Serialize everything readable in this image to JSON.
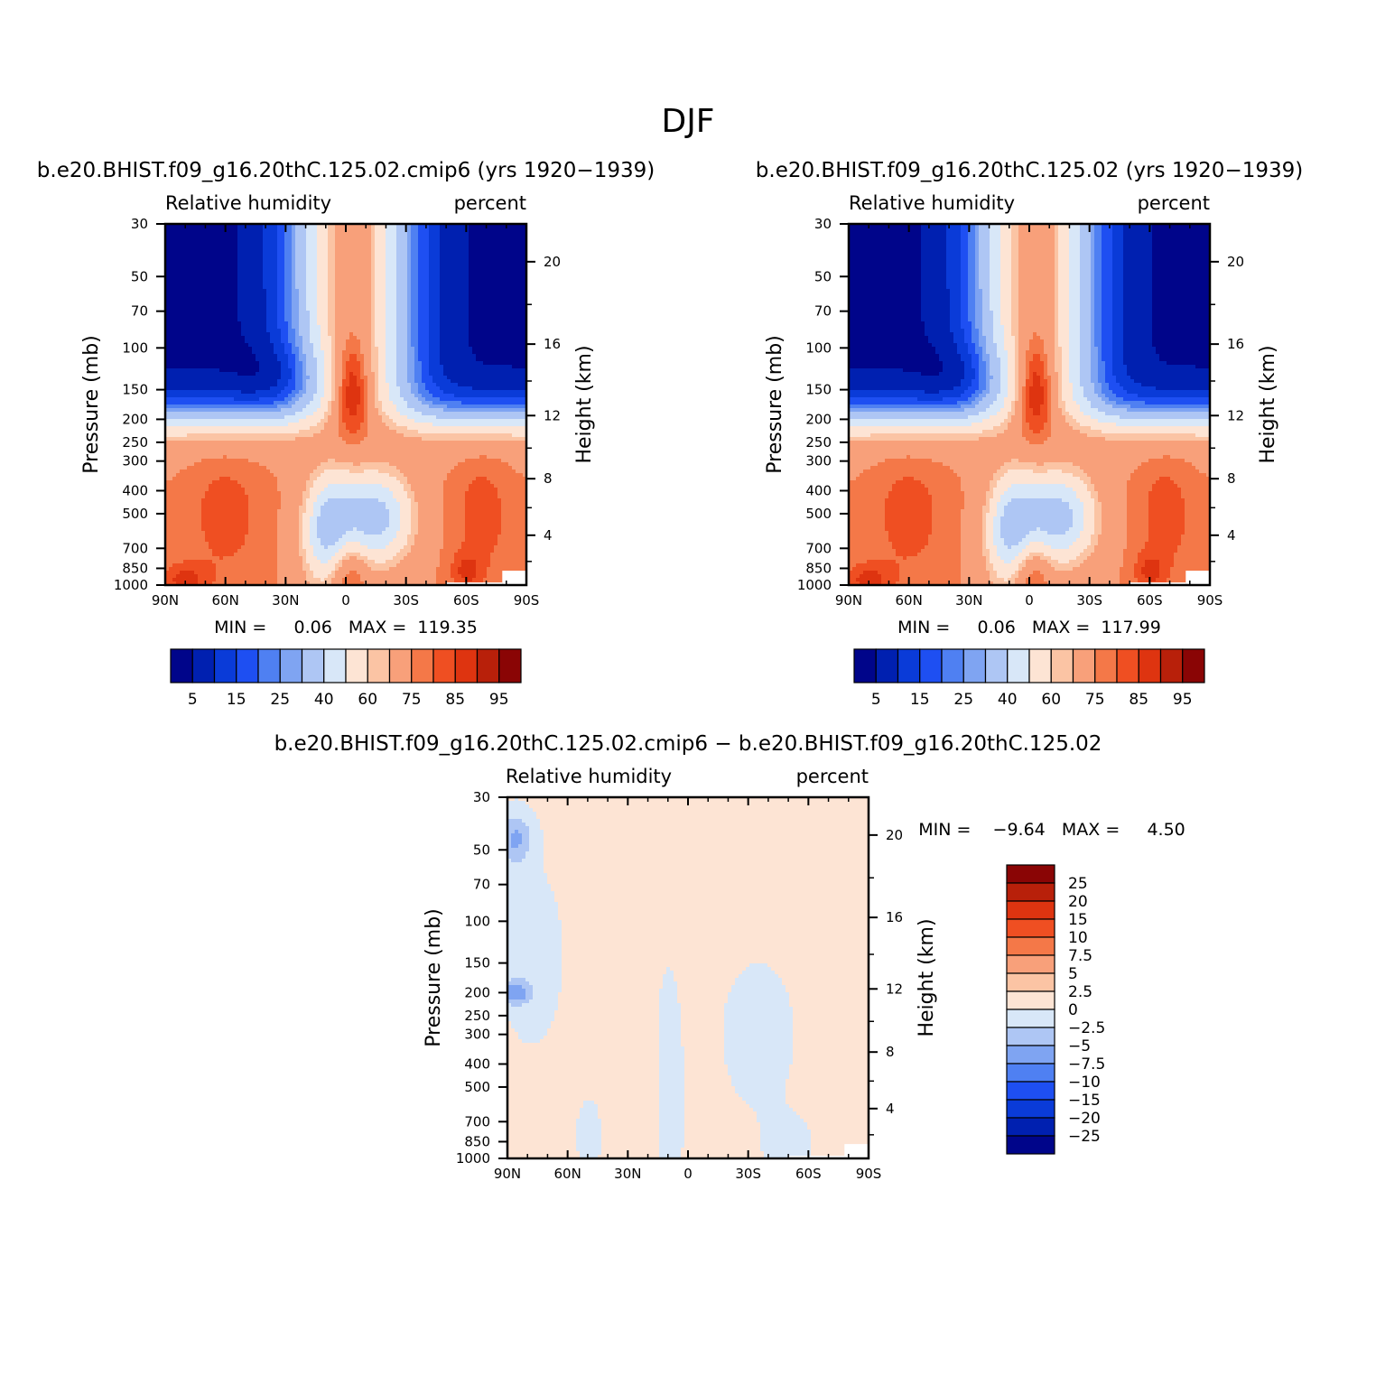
{
  "figure": {
    "title": "DJF"
  },
  "colors": {
    "abs_palette": [
      "#00058a",
      "#0020b0",
      "#0a3bd8",
      "#1e4ff2",
      "#4f80f2",
      "#7fa4f2",
      "#aec6f4",
      "#d8e7f8",
      "#fde4d4",
      "#fbc4a4",
      "#f8a07a",
      "#f47848",
      "#ef4f22",
      "#de3410",
      "#b8200a",
      "#8a0505"
    ],
    "diff_palette": [
      "#8a0505",
      "#b8200a",
      "#de3410",
      "#ef4f22",
      "#f47848",
      "#f8a07a",
      "#fbc4a4",
      "#fde4d4",
      "#d8e7f8",
      "#aec6f4",
      "#7fa4f2",
      "#4f80f2",
      "#1e4ff2",
      "#0a3bd8",
      "#0020b0",
      "#00058a"
    ]
  },
  "chart_data": [
    {
      "type": "heatmap",
      "panel_id": "case",
      "title": "b.e20.BHIST.f09_g16.20thC.125.02.cmip6 (yrs 1920−1939)",
      "left_label": "Relative humidity",
      "right_label": "percent",
      "xlabel": "",
      "ylabel": "Pressure (mb)",
      "y2label": "Height (km)",
      "x_ticks": [
        "90N",
        "60N",
        "30N",
        "0",
        "30S",
        "60S",
        "90S"
      ],
      "x_values": [
        90,
        60,
        30,
        0,
        -30,
        -60,
        -90
      ],
      "y_ticks": [
        30,
        50,
        70,
        100,
        150,
        200,
        250,
        300,
        400,
        500,
        700,
        850,
        1000
      ],
      "y_labels": [
        "30",
        "50",
        "70",
        "100",
        "150",
        "200",
        "250",
        "300",
        "400",
        "500",
        "700",
        "850",
        "1000"
      ],
      "y2_ticks": [
        20,
        16,
        12,
        8,
        4
      ],
      "y2_labels": [
        "20",
        "16",
        "12",
        "8",
        "4"
      ],
      "ylim": [
        30,
        1000
      ],
      "xlim": [
        90,
        -90
      ],
      "stats_text": "MIN =     0.06   MAX =  119.35",
      "min": 0.06,
      "max": 119.35,
      "levels": [
        5,
        10,
        15,
        20,
        25,
        30,
        40,
        50,
        60,
        65,
        75,
        80,
        85,
        90,
        95
      ],
      "colorbar_labels": [
        "5",
        "15",
        "25",
        "40",
        "60",
        "75",
        "85",
        "95"
      ]
    },
    {
      "type": "heatmap",
      "panel_id": "control",
      "title": "b.e20.BHIST.f09_g16.20thC.125.02 (yrs 1920−1939)",
      "left_label": "Relative humidity",
      "right_label": "percent",
      "xlabel": "",
      "ylabel": "Pressure (mb)",
      "y2label": "Height (km)",
      "x_ticks": [
        "90N",
        "60N",
        "30N",
        "0",
        "30S",
        "60S",
        "90S"
      ],
      "x_values": [
        90,
        60,
        30,
        0,
        -30,
        -60,
        -90
      ],
      "y_ticks": [
        30,
        50,
        70,
        100,
        150,
        200,
        250,
        300,
        400,
        500,
        700,
        850,
        1000
      ],
      "y_labels": [
        "30",
        "50",
        "70",
        "100",
        "150",
        "200",
        "250",
        "300",
        "400",
        "500",
        "700",
        "850",
        "1000"
      ],
      "y2_ticks": [
        20,
        16,
        12,
        8,
        4
      ],
      "y2_labels": [
        "20",
        "16",
        "12",
        "8",
        "4"
      ],
      "ylim": [
        30,
        1000
      ],
      "xlim": [
        90,
        -90
      ],
      "stats_text": "MIN =     0.06   MAX =  117.99",
      "min": 0.06,
      "max": 117.99,
      "levels": [
        5,
        10,
        15,
        20,
        25,
        30,
        40,
        50,
        60,
        65,
        75,
        80,
        85,
        90,
        95
      ],
      "colorbar_labels": [
        "5",
        "15",
        "25",
        "40",
        "60",
        "75",
        "85",
        "95"
      ]
    },
    {
      "type": "heatmap",
      "panel_id": "difference",
      "title": "b.e20.BHIST.f09_g16.20thC.125.02.cmip6 − b.e20.BHIST.f09_g16.20thC.125.02",
      "left_label": "Relative humidity",
      "right_label": "percent",
      "xlabel": "",
      "ylabel": "Pressure (mb)",
      "y2label": "Height (km)",
      "x_ticks": [
        "90N",
        "60N",
        "30N",
        "0",
        "30S",
        "60S",
        "90S"
      ],
      "x_values": [
        90,
        60,
        30,
        0,
        -30,
        -60,
        -90
      ],
      "y_ticks": [
        30,
        50,
        70,
        100,
        150,
        200,
        250,
        300,
        400,
        500,
        700,
        850,
        1000
      ],
      "y_labels": [
        "30",
        "50",
        "70",
        "100",
        "150",
        "200",
        "250",
        "300",
        "400",
        "500",
        "700",
        "850",
        "1000"
      ],
      "y2_ticks": [
        20,
        16,
        12,
        8,
        4
      ],
      "y2_labels": [
        "20",
        "16",
        "12",
        "8",
        "4"
      ],
      "ylim": [
        30,
        1000
      ],
      "xlim": [
        90,
        -90
      ],
      "stats_text": "MIN =    −9.64   MAX =     4.50",
      "min": -9.64,
      "max": 4.5,
      "levels": [
        25,
        20,
        15,
        10,
        7.5,
        5,
        2.5,
        0,
        -2.5,
        -5,
        -7.5,
        -10,
        -15,
        -20,
        -25
      ],
      "colorbar_labels": [
        "25",
        "20",
        "15",
        "10",
        "7.5",
        "5",
        "2.5",
        "0",
        "−2.5",
        "−5",
        "−7.5",
        "−10",
        "−15",
        "−20",
        "−25"
      ]
    }
  ]
}
